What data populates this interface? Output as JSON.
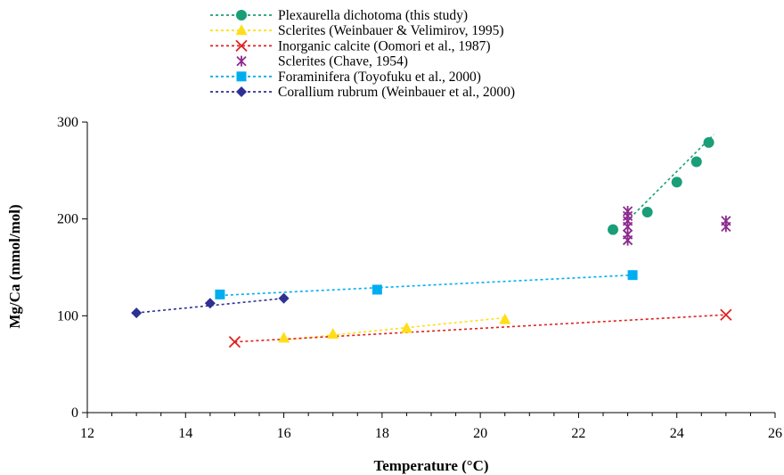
{
  "chart_data": {
    "type": "scatter",
    "xlabel": "Temperature (°C)",
    "ylabel": "Mg/Ca (mmol/mol)",
    "xlim": [
      12,
      26
    ],
    "ylim": [
      0,
      300
    ],
    "xticks": [
      12,
      14,
      16,
      18,
      20,
      22,
      24,
      26
    ],
    "yticks": [
      0,
      100,
      200,
      300
    ],
    "grid": false,
    "legend_position": "top-center",
    "series": [
      {
        "name": "Plexaurella dichotoma (this study)",
        "color": "#1a9e77",
        "marker": "circle",
        "trendline": true,
        "points": [
          [
            22.7,
            189
          ],
          [
            23.4,
            207
          ],
          [
            24.0,
            238
          ],
          [
            24.4,
            259
          ],
          [
            24.65,
            279
          ]
        ],
        "trend": [
          [
            23.05,
            201
          ],
          [
            24.75,
            287
          ]
        ]
      },
      {
        "name": "Sclerites (Weinbauer & Velimirov, 1995)",
        "color": "#ffde17",
        "marker": "triangle",
        "trendline": true,
        "points": [
          [
            16.0,
            77
          ],
          [
            17.0,
            81
          ],
          [
            18.5,
            87
          ],
          [
            20.5,
            96
          ]
        ],
        "trend": [
          [
            16.0,
            75
          ],
          [
            20.5,
            98
          ]
        ]
      },
      {
        "name": "Inorganic calcite (Oomori et al., 1987)",
        "color": "#e02020",
        "marker": "x",
        "trendline": true,
        "points": [
          [
            15.0,
            73
          ],
          [
            25.0,
            101
          ]
        ],
        "trend": [
          [
            15.0,
            73
          ],
          [
            25.0,
            101
          ]
        ]
      },
      {
        "name": "Sclerites (Chave, 1954)",
        "color": "#8b2a8f",
        "marker": "asterisk",
        "trendline": false,
        "points": [
          [
            23.0,
            178
          ],
          [
            23.0,
            184
          ],
          [
            23.0,
            192
          ],
          [
            23.0,
            198
          ],
          [
            23.0,
            203
          ],
          [
            23.0,
            208
          ],
          [
            25.0,
            192
          ],
          [
            25.0,
            198
          ]
        ]
      },
      {
        "name": "Foraminifera (Toyofuku et al., 2000)",
        "color": "#00aeef",
        "marker": "square",
        "trendline": true,
        "points": [
          [
            14.7,
            122
          ],
          [
            17.9,
            127
          ],
          [
            23.1,
            142
          ]
        ],
        "trend": [
          [
            14.7,
            121
          ],
          [
            23.1,
            142
          ]
        ]
      },
      {
        "name": "Corallium rubrum (Weinbauer et al., 2000)",
        "color": "#2e3192",
        "marker": "diamond",
        "trendline": true,
        "points": [
          [
            13.0,
            103
          ],
          [
            14.5,
            113
          ],
          [
            16.0,
            118
          ]
        ],
        "trend": [
          [
            13.0,
            103
          ],
          [
            16.0,
            118
          ]
        ]
      }
    ]
  }
}
